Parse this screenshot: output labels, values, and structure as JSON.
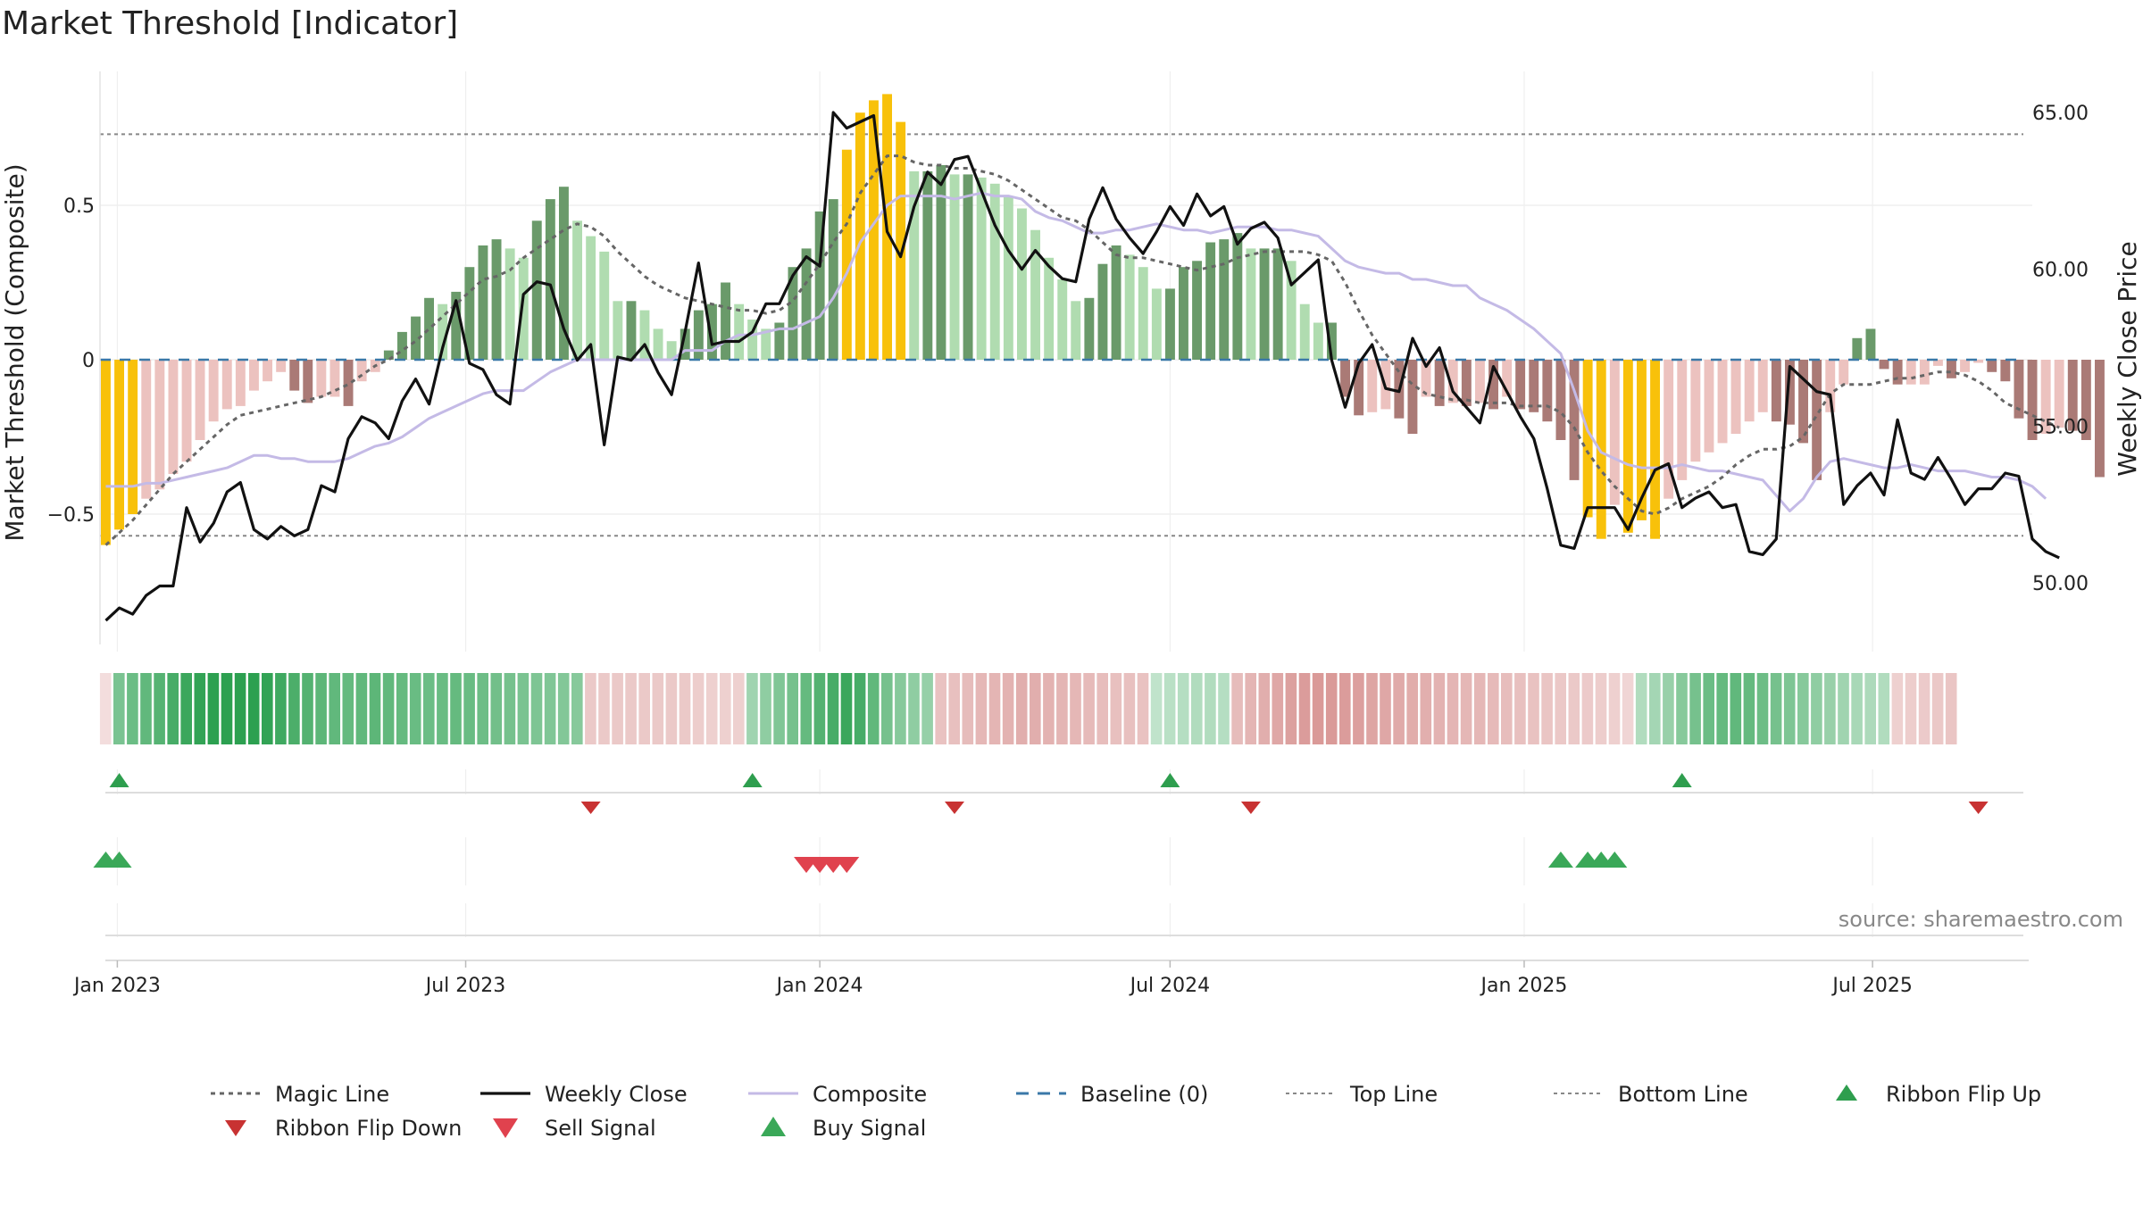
{
  "chart_data": {
    "type": "bar",
    "title": "Market Threshold [Indicator]",
    "ylabel_left": "Market Threshold (Composite)",
    "ylabel_right": "Weekly Close Price",
    "source": "source: sharemaestro.com",
    "left_axis": {
      "range": [
        -0.85,
        0.93
      ],
      "ticks": [
        0.5,
        0,
        -0.5
      ],
      "tick_labels": [
        "0.5",
        "0",
        "−0.5"
      ]
    },
    "right_axis": {
      "range": [
        48.0,
        67.6
      ],
      "ticks": [
        65,
        60,
        55,
        50
      ],
      "tick_labels": [
        "65.00",
        "60.00",
        "55.00",
        "50.00"
      ]
    },
    "x_axis": {
      "start": "2022-12-23",
      "end": "2025-09-22",
      "ticks": [
        {
          "date": "2023-01-01",
          "label": "Jan 2023"
        },
        {
          "date": "2023-07-01",
          "label": "Jul 2023"
        },
        {
          "date": "2024-01-01",
          "label": "Jan 2024"
        },
        {
          "date": "2024-07-01",
          "label": "Jul 2024"
        },
        {
          "date": "2025-01-01",
          "label": "Jan 2025"
        },
        {
          "date": "2025-07-01",
          "label": "Jul 2025"
        }
      ]
    },
    "reference_lines": {
      "top": 0.73,
      "bottom": -0.57,
      "baseline": 0
    },
    "week_start": "2022-12-26",
    "composite_bars": [
      -0.6,
      -0.55,
      -0.5,
      -0.45,
      -0.42,
      -0.37,
      -0.33,
      -0.26,
      -0.2,
      -0.16,
      -0.15,
      -0.1,
      -0.07,
      -0.04,
      -0.1,
      -0.14,
      -0.12,
      -0.12,
      -0.15,
      -0.07,
      -0.04,
      0.03,
      0.09,
      0.14,
      0.2,
      0.18,
      0.22,
      0.3,
      0.37,
      0.39,
      0.36,
      0.33,
      0.45,
      0.52,
      0.56,
      0.45,
      0.4,
      0.35,
      0.19,
      0.19,
      0.16,
      0.1,
      0.06,
      0.1,
      0.16,
      0.18,
      0.25,
      0.18,
      0.13,
      0.1,
      0.12,
      0.3,
      0.36,
      0.48,
      0.52,
      0.68,
      0.8,
      0.84,
      0.86,
      0.77,
      0.61,
      0.61,
      0.63,
      0.6,
      0.6,
      0.59,
      0.57,
      0.53,
      0.49,
      0.42,
      0.33,
      0.26,
      0.19,
      0.2,
      0.31,
      0.37,
      0.34,
      0.3,
      0.23,
      0.23,
      0.3,
      0.32,
      0.38,
      0.39,
      0.41,
      0.36,
      0.36,
      0.36,
      0.32,
      0.18,
      0.12,
      0.12,
      -0.12,
      -0.18,
      -0.17,
      -0.16,
      -0.19,
      -0.24,
      -0.12,
      -0.15,
      -0.14,
      -0.15,
      -0.14,
      -0.16,
      -0.12,
      -0.16,
      -0.17,
      -0.2,
      -0.26,
      -0.39,
      -0.51,
      -0.58,
      -0.47,
      -0.56,
      -0.52,
      -0.58,
      -0.45,
      -0.39,
      -0.33,
      -0.3,
      -0.27,
      -0.24,
      -0.2,
      -0.17,
      -0.2,
      -0.21,
      -0.27,
      -0.39,
      -0.17,
      -0.08,
      0.07,
      0.1,
      -0.03,
      -0.08,
      -0.08,
      -0.08,
      -0.02,
      -0.06,
      -0.04,
      -0.01,
      -0.04,
      -0.07,
      -0.19,
      -0.26,
      -0.24,
      -0.22,
      -0.23,
      -0.26,
      -0.38
    ],
    "composite_line": [
      -0.41,
      -0.41,
      -0.41,
      -0.4,
      -0.4,
      -0.39,
      -0.38,
      -0.37,
      -0.36,
      -0.35,
      -0.33,
      -0.31,
      -0.31,
      -0.32,
      -0.32,
      -0.33,
      -0.33,
      -0.33,
      -0.32,
      -0.3,
      -0.28,
      -0.27,
      -0.25,
      -0.22,
      -0.19,
      -0.17,
      -0.15,
      -0.13,
      -0.11,
      -0.1,
      -0.1,
      -0.1,
      -0.07,
      -0.04,
      -0.02,
      0,
      0,
      0,
      0,
      0,
      0,
      0,
      0,
      0.03,
      0.03,
      0.03,
      0.06,
      0.08,
      0.08,
      0.09,
      0.1,
      0.1,
      0.12,
      0.14,
      0.2,
      0.28,
      0.38,
      0.44,
      0.5,
      0.53,
      0.53,
      0.53,
      0.53,
      0.52,
      0.53,
      0.54,
      0.53,
      0.53,
      0.52,
      0.48,
      0.46,
      0.45,
      0.43,
      0.41,
      0.41,
      0.42,
      0.42,
      0.43,
      0.44,
      0.43,
      0.42,
      0.42,
      0.41,
      0.42,
      0.43,
      0.43,
      0.43,
      0.42,
      0.42,
      0.41,
      0.4,
      0.36,
      0.32,
      0.3,
      0.29,
      0.28,
      0.28,
      0.26,
      0.26,
      0.25,
      0.24,
      0.24,
      0.2,
      0.18,
      0.16,
      0.13,
      0.1,
      0.06,
      0.02,
      -0.1,
      -0.23,
      -0.3,
      -0.32,
      -0.34,
      -0.35,
      -0.35,
      -0.35,
      -0.34,
      -0.35,
      -0.36,
      -0.36,
      -0.37,
      -0.38,
      -0.39,
      -0.44,
      -0.49,
      -0.45,
      -0.38,
      -0.33,
      -0.32,
      -0.33,
      -0.34,
      -0.35,
      -0.35,
      -0.34,
      -0.35,
      -0.36,
      -0.36,
      -0.36,
      -0.37,
      -0.38,
      -0.38,
      -0.39,
      -0.41,
      -0.45
    ],
    "magic_line": [
      -0.6,
      -0.56,
      -0.52,
      -0.47,
      -0.42,
      -0.37,
      -0.33,
      -0.29,
      -0.25,
      -0.21,
      -0.18,
      -0.17,
      -0.16,
      -0.15,
      -0.14,
      -0.13,
      -0.12,
      -0.1,
      -0.08,
      -0.05,
      -0.02,
      0,
      0.03,
      0.06,
      0.1,
      0.14,
      0.18,
      0.22,
      0.26,
      0.27,
      0.29,
      0.33,
      0.36,
      0.39,
      0.42,
      0.44,
      0.43,
      0.4,
      0.35,
      0.31,
      0.27,
      0.24,
      0.22,
      0.2,
      0.19,
      0.18,
      0.17,
      0.16,
      0.16,
      0.15,
      0.16,
      0.19,
      0.25,
      0.31,
      0.38,
      0.44,
      0.54,
      0.6,
      0.66,
      0.66,
      0.64,
      0.63,
      0.63,
      0.62,
      0.62,
      0.61,
      0.6,
      0.58,
      0.55,
      0.52,
      0.49,
      0.46,
      0.45,
      0.42,
      0.38,
      0.34,
      0.33,
      0.33,
      0.32,
      0.31,
      0.3,
      0.29,
      0.3,
      0.31,
      0.33,
      0.34,
      0.35,
      0.35,
      0.35,
      0.35,
      0.34,
      0.32,
      0.25,
      0.16,
      0.08,
      0.02,
      -0.04,
      -0.08,
      -0.11,
      -0.12,
      -0.13,
      -0.13,
      -0.14,
      -0.14,
      -0.14,
      -0.15,
      -0.15,
      -0.15,
      -0.17,
      -0.22,
      -0.3,
      -0.36,
      -0.41,
      -0.45,
      -0.49,
      -0.5,
      -0.48,
      -0.45,
      -0.43,
      -0.41,
      -0.38,
      -0.34,
      -0.31,
      -0.29,
      -0.29,
      -0.28,
      -0.25,
      -0.18,
      -0.11,
      -0.08,
      -0.08,
      -0.08,
      -0.07,
      -0.06,
      -0.06,
      -0.05,
      -0.04,
      -0.04,
      -0.05,
      -0.07,
      -0.1,
      -0.14,
      -0.16,
      -0.18,
      -0.2,
      -0.22
    ],
    "weekly_close": [
      48.8,
      49.2,
      49,
      49.6,
      49.9,
      49.9,
      52.4,
      51.3,
      51.9,
      52.9,
      53.2,
      51.7,
      51.4,
      51.8,
      51.5,
      51.7,
      53.1,
      52.9,
      54.6,
      55.3,
      55.1,
      54.6,
      55.8,
      56.5,
      55.7,
      57.5,
      59.0,
      57.0,
      56.8,
      56.0,
      55.7,
      59.2,
      59.6,
      59.5,
      58.1,
      57.1,
      57.6,
      54.4,
      57.2,
      57.1,
      57.6,
      56.7,
      56.0,
      58.0,
      60.2,
      57.6,
      57.7,
      57.7,
      58.0,
      58.9,
      58.9,
      59.8,
      60.4,
      60.1,
      65.0,
      64.5,
      64.7,
      64.9,
      61.2,
      60.4,
      62.0,
      63.1,
      62.7,
      63.5,
      63.6,
      62.5,
      61.4,
      60.6,
      60.0,
      60.6,
      60.1,
      59.7,
      59.6,
      61.6,
      62.6,
      61.6,
      61.0,
      60.5,
      61.2,
      62.0,
      61.4,
      62.4,
      61.7,
      62.0,
      60.8,
      61.3,
      61.5,
      61.0,
      59.5,
      59.9,
      60.3,
      57.1,
      55.6,
      57.0,
      57.6,
      56.2,
      56.1,
      57.8,
      56.9,
      57.5,
      56.1,
      55.6,
      55.1,
      56.9,
      56.1,
      55.3,
      54.6,
      53.0,
      51.2,
      51.1,
      52.4,
      52.4,
      52.4,
      51.7,
      52.7,
      53.6,
      53.8,
      52.4,
      52.7,
      52.9,
      52.4,
      52.5,
      51.0,
      50.9,
      51.4,
      56.9,
      56.5,
      56.1,
      56.0,
      52.5,
      53.1,
      53.5,
      52.8,
      55.2,
      53.5,
      53.3,
      54.0,
      53.3,
      52.5,
      53.0,
      53.0,
      53.5,
      53.4,
      51.4,
      51.0,
      50.8
    ],
    "ribbon_values": [
      -0.1,
      0.48,
      0.55,
      0.6,
      0.65,
      0.72,
      0.78,
      0.82,
      0.86,
      0.9,
      0.9,
      0.86,
      0.82,
      0.76,
      0.7,
      0.66,
      0.62,
      0.6,
      0.58,
      0.6,
      0.62,
      0.6,
      0.58,
      0.56,
      0.55,
      0.56,
      0.58,
      0.56,
      0.54,
      0.52,
      0.5,
      0.48,
      0.46,
      0.45,
      0.44,
      0.42,
      -0.25,
      -0.25,
      -0.25,
      -0.25,
      -0.25,
      -0.25,
      -0.25,
      -0.25,
      -0.22,
      -0.2,
      -0.2,
      -0.2,
      0.3,
      0.38,
      0.45,
      0.5,
      0.58,
      0.66,
      0.72,
      0.78,
      0.72,
      0.6,
      0.5,
      0.42,
      0.38,
      0.35,
      -0.3,
      -0.32,
      -0.35,
      -0.38,
      -0.4,
      -0.42,
      -0.45,
      -0.45,
      -0.42,
      -0.4,
      -0.38,
      -0.36,
      -0.34,
      -0.32,
      -0.32,
      -0.3,
      0.15,
      0.18,
      0.2,
      0.22,
      0.22,
      0.2,
      -0.35,
      -0.4,
      -0.45,
      -0.5,
      -0.55,
      -0.58,
      -0.6,
      -0.6,
      -0.58,
      -0.56,
      -0.52,
      -0.5,
      -0.48,
      -0.46,
      -0.44,
      -0.42,
      -0.4,
      -0.38,
      -0.38,
      -0.36,
      -0.34,
      -0.32,
      -0.3,
      -0.28,
      -0.26,
      -0.25,
      -0.24,
      -0.22,
      -0.2,
      -0.16,
      0.22,
      0.28,
      0.34,
      0.42,
      0.5,
      0.55,
      0.58,
      0.6,
      0.58,
      0.54,
      0.5,
      0.46,
      0.42,
      0.38,
      0.34,
      0.3,
      0.26,
      0.24,
      0.22,
      -0.2,
      -0.22,
      -0.24,
      -0.26,
      -0.28
    ],
    "ribbon_flip_up_weeks": [
      1,
      48,
      79,
      117
    ],
    "ribbon_flip_down_weeks": [
      36,
      63,
      85,
      139
    ],
    "buy_signal_weeks": [
      0,
      1,
      108,
      110,
      111,
      112
    ],
    "sell_signal_weeks": [
      52,
      53,
      54,
      55
    ],
    "colors": {
      "strong_bull": "#6a9a6a",
      "weak_bull": "#b0dcb0",
      "weak_bear": "#ecc2bf",
      "strong_bear": "#aa7a76",
      "extreme": "#f8c10a",
      "weekly_close": "#111111",
      "composite_line": "#c4bae6",
      "magic_line": "#666666",
      "baseline": "#3a78a8",
      "ref_lines": "#888888",
      "flip_up": "#2e9e4e",
      "flip_down": "#c83232",
      "sell": "#e0424e",
      "buy": "#3aa858"
    },
    "legend": [
      {
        "key": "magic",
        "label": "Magic Line"
      },
      {
        "key": "close",
        "label": "Weekly Close"
      },
      {
        "key": "composite",
        "label": "Composite"
      },
      {
        "key": "baseline",
        "label": "Baseline (0)"
      },
      {
        "key": "top",
        "label": "Top Line"
      },
      {
        "key": "bottom",
        "label": "Bottom Line"
      },
      {
        "key": "flip_up",
        "label": "Ribbon Flip Up"
      },
      {
        "key": "flip_down",
        "label": "Ribbon Flip Down"
      },
      {
        "key": "sell",
        "label": "Sell Signal"
      },
      {
        "key": "buy",
        "label": "Buy Signal"
      }
    ]
  }
}
